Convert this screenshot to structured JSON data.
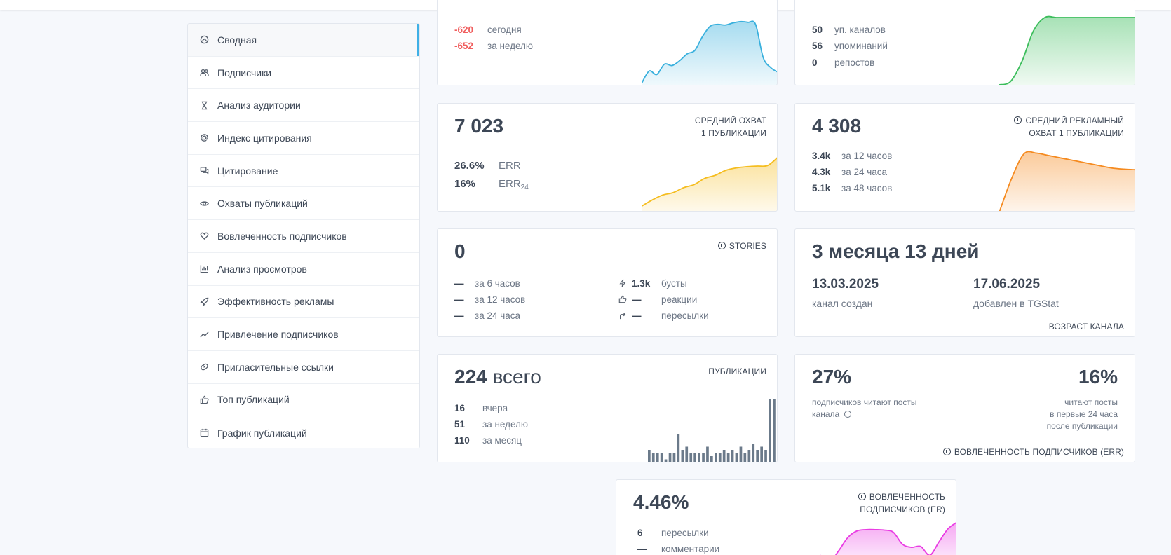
{
  "sidebar": {
    "items": [
      {
        "label": "Сводная",
        "icon": "dashboard-icon",
        "active": true
      },
      {
        "label": "Подписчики",
        "icon": "users-icon"
      },
      {
        "label": "Анализ аудитории",
        "icon": "hourglass-icon"
      },
      {
        "label": "Индекс цитирования",
        "icon": "at-icon"
      },
      {
        "label": "Цитирование",
        "icon": "comments-icon"
      },
      {
        "label": "Охваты публикаций",
        "icon": "eye-icon"
      },
      {
        "label": "Вовлеченность подписчиков",
        "icon": "heart-icon"
      },
      {
        "label": "Анализ просмотров",
        "icon": "bar-chart-icon"
      },
      {
        "label": "Эффективность рекламы",
        "icon": "rocket-icon"
      },
      {
        "label": "Привлечение подписчиков",
        "icon": "trend-icon"
      },
      {
        "label": "Пригласительные ссылки",
        "icon": "link-icon"
      },
      {
        "label": "Топ публикаций",
        "icon": "thumbs-up-icon"
      },
      {
        "label": "График публикаций",
        "icon": "calendar-icon"
      }
    ]
  },
  "subs": {
    "today_value": "-620",
    "today_label": "сегодня",
    "week_value": "-652",
    "week_label": "за неделю",
    "color": "#39b0dd"
  },
  "mentions": {
    "channels_value": "50",
    "channels_label": "уп. каналов",
    "mentions_value": "56",
    "mentions_label": "упоминаний",
    "reposts_value": "0",
    "reposts_label": "репостов",
    "color": "#3bbd5b"
  },
  "reach": {
    "value": "7 023",
    "caption_line1": "СРЕДНИЙ ОХВАТ",
    "caption_line2": "1 ПУБЛИКАЦИИ",
    "err_value": "26.6%",
    "err_label": "ERR",
    "err24_value": "16%",
    "err24_label": "ERR",
    "err24_sub": "24",
    "color": "#f5bd1f"
  },
  "ad_reach": {
    "value": "4 308",
    "caption_line1": "СРЕДНИЙ РЕКЛАМНЫЙ",
    "caption_line2": "ОХВАТ 1 ПУБЛИКАЦИИ",
    "rows": [
      {
        "value": "3.4k",
        "label": "за 12 часов"
      },
      {
        "value": "4.3k",
        "label": "за 24 часа"
      },
      {
        "value": "5.1k",
        "label": "за 48 часов"
      }
    ],
    "color": "#f58a1f"
  },
  "stories": {
    "value": "0",
    "caption": "STORIES",
    "rows": [
      {
        "value": "—",
        "label": "за 6 часов"
      },
      {
        "value": "—",
        "label": "за 12 часов"
      },
      {
        "value": "—",
        "label": "за 24 часа"
      }
    ],
    "right_rows": [
      {
        "icon": "bolt-icon",
        "value": "1.3k",
        "label": "бусты"
      },
      {
        "icon": "thumbs-up-icon",
        "value": "—",
        "label": "реакции"
      },
      {
        "icon": "share-icon",
        "value": "—",
        "label": "пересылки"
      }
    ]
  },
  "age": {
    "value": "3 месяца 13 дней",
    "created_date": "13.03.2025",
    "created_label": "канал создан",
    "added_date": "17.06.2025",
    "added_label": "добавлен в TGStat",
    "caption": "ВОЗРАСТ КАНАЛА"
  },
  "posts": {
    "value": "224",
    "value_suffix": "всего",
    "caption": "ПУБЛИКАЦИИ",
    "rows": [
      {
        "value": "16",
        "label": "вчера"
      },
      {
        "value": "51",
        "label": "за неделю"
      },
      {
        "value": "110",
        "label": "за месяц"
      }
    ],
    "color": "#6b7a8a"
  },
  "err": {
    "left_value": "27%",
    "left_text_line1": "подписчиков читают посты",
    "left_text_line2": "канала",
    "right_value": "16%",
    "right_text_line1": "читают посты",
    "right_text_line2": "в первые 24 часа",
    "right_text_line3": "после публикации",
    "caption": "ВОВЛЕЧЕННОСТЬ ПОДПИСЧИКОВ (ERR)"
  },
  "er": {
    "value": "4.46%",
    "caption_line1": "ВОВЛЕЧЕННОСТЬ",
    "caption_line2": "ПОДПИСЧИКОВ (ER)",
    "rows": [
      {
        "value": "6",
        "label": "пересылки"
      },
      {
        "value": "—",
        "label": "комментарии"
      }
    ],
    "color": "#e93ce3"
  },
  "chart_data": [
    {
      "type": "area",
      "name": "subscribers",
      "values": [
        2,
        20,
        15,
        30,
        28,
        35,
        45,
        50,
        70,
        85,
        88,
        87,
        90,
        92,
        91,
        88,
        40,
        25,
        18
      ]
    },
    {
      "type": "area",
      "name": "mentions",
      "values": [
        0,
        5,
        35,
        80,
        100,
        100,
        100,
        100,
        100,
        100,
        100,
        100,
        100
      ]
    },
    {
      "type": "area",
      "name": "reach",
      "values": [
        10,
        20,
        28,
        32,
        40,
        45,
        55,
        60,
        68,
        72,
        74,
        75,
        76,
        90
      ]
    },
    {
      "type": "area",
      "name": "ad_reach",
      "values": [
        0,
        55,
        95,
        96,
        92,
        88,
        84,
        80,
        76,
        72,
        70,
        69
      ]
    },
    {
      "type": "bar",
      "name": "posts",
      "values": [
        4,
        3,
        3,
        3,
        1,
        3,
        3,
        9,
        4,
        5,
        3,
        3,
        3,
        3,
        5,
        2,
        3,
        3,
        4,
        3,
        4,
        3,
        5,
        3,
        4,
        6,
        4,
        5,
        4,
        20,
        20
      ]
    },
    {
      "type": "area",
      "name": "er",
      "values": [
        20,
        5,
        30,
        60,
        75,
        78,
        78,
        77,
        72,
        45,
        38,
        40,
        20,
        50,
        80,
        95
      ]
    }
  ]
}
